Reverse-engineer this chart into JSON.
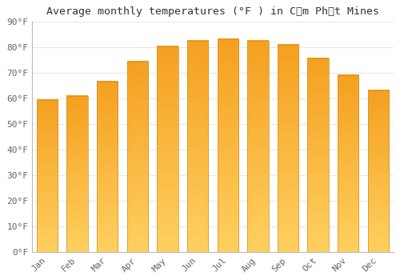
{
  "title": "Average monthly temperatures (°F ) in Cẩm Phảt Mines",
  "months": [
    "Jan",
    "Feb",
    "Mar",
    "Apr",
    "May",
    "Jun",
    "Jul",
    "Aug",
    "Sep",
    "Oct",
    "Nov",
    "Dec"
  ],
  "values": [
    59.5,
    60.8,
    66.5,
    74.3,
    80.2,
    82.5,
    83.1,
    82.3,
    80.8,
    75.7,
    69.1,
    63.0
  ],
  "bar_color_top": "#F5A623",
  "bar_color_bottom": "#FFD060",
  "bar_edge_color": "#C8922A",
  "ylim": [
    0,
    90
  ],
  "yticks": [
    0,
    10,
    20,
    30,
    40,
    50,
    60,
    70,
    80,
    90
  ],
  "ytick_labels": [
    "0°F",
    "10°F",
    "20°F",
    "30°F",
    "40°F",
    "50°F",
    "60°F",
    "70°F",
    "80°F",
    "90°F"
  ],
  "background_color": "#ffffff",
  "grid_color": "#e8e8e8",
  "title_fontsize": 9.5,
  "tick_fontsize": 8,
  "font_family": "monospace",
  "tick_color": "#666666"
}
